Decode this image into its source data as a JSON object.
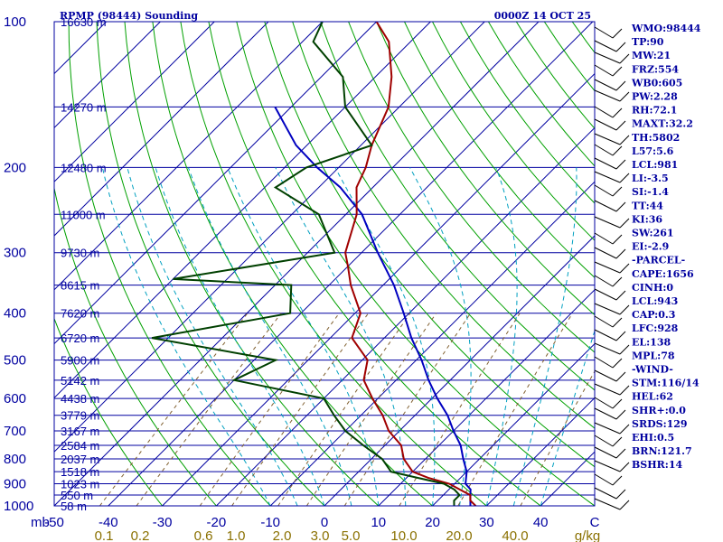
{
  "header": {
    "station": "RPMP (98444) Sounding",
    "time": "0000Z 14 OCT 25"
  },
  "chart_data": {
    "type": "line",
    "title": "RPMP (98444) Sounding",
    "subtitle": "0000Z 14 OCT 25",
    "pressure_levels": [
      100,
      200,
      300,
      400,
      500,
      600,
      700,
      800,
      900,
      1000
    ],
    "height_labels": [
      {
        "p": 100,
        "text": "16630 m"
      },
      {
        "p": 150,
        "text": "14270 m"
      },
      {
        "p": 200,
        "text": "12480 m"
      },
      {
        "p": 250,
        "text": "11000 m"
      },
      {
        "p": 300,
        "text": "9730 m"
      },
      {
        "p": 350,
        "text": "8615 m"
      },
      {
        "p": 400,
        "text": "7620 m"
      },
      {
        "p": 450,
        "text": "6720 m"
      },
      {
        "p": 500,
        "text": "5900 m"
      },
      {
        "p": 550,
        "text": "5142 m"
      },
      {
        "p": 600,
        "text": "4438 m"
      },
      {
        "p": 650,
        "text": "3779 m"
      },
      {
        "p": 700,
        "text": "3167 m"
      },
      {
        "p": 750,
        "text": "2584 m"
      },
      {
        "p": 800,
        "text": "2037 m"
      },
      {
        "p": 850,
        "text": "1518 m"
      },
      {
        "p": 900,
        "text": "1023 m"
      },
      {
        "p": 950,
        "text": "550 m"
      },
      {
        "p": 1000,
        "text": "58 m"
      }
    ],
    "pressure_unit": "mb",
    "temp_ticks": [
      "-50",
      "-40",
      "-30",
      "-20",
      "-10",
      "0",
      "10",
      "20",
      "30",
      "40",
      "C"
    ],
    "mixing_ratio_labels": [
      "0.1",
      "0.2",
      "0.6",
      "1.0",
      "2.0",
      "3.0",
      "5.0",
      "10.0",
      "20.0",
      "40.0",
      "g/kg"
    ],
    "xlim": [
      -50,
      50
    ],
    "ylim": [
      1000,
      100
    ],
    "y_scale": "log",
    "skew": true,
    "series": [
      {
        "values_x_temp_C": [
          28,
          26,
          25,
          22,
          19,
          14,
          10,
          6,
          3,
          -2,
          -6,
          -11,
          -16,
          -19,
          -26,
          -29,
          -36,
          -40,
          -43,
          -48,
          -53,
          -55,
          -58,
          -62,
          -67,
          -74,
          -80
        ],
        "pressure_mb": [
          1000,
          975,
          950,
          925,
          900,
          875,
          850,
          800,
          750,
          700,
          650,
          600,
          550,
          500,
          450,
          400,
          350,
          320,
          300,
          250,
          220,
          200,
          180,
          150,
          130,
          110,
          100
        ]
      },
      {
        "values_x_dewpoint_C": [
          24,
          23,
          23,
          21,
          18,
          12,
          6,
          2,
          -4,
          -10,
          -15,
          -20,
          -40,
          -36,
          -63,
          -42,
          -47,
          -70,
          -45,
          -55,
          -68,
          -66,
          -58,
          -70,
          -76,
          -88,
          -90
        ],
        "pressure_mb": [
          1000,
          975,
          950,
          925,
          900,
          875,
          850,
          800,
          750,
          700,
          650,
          600,
          550,
          500,
          450,
          400,
          350,
          340,
          300,
          250,
          220,
          200,
          180,
          150,
          130,
          110,
          100
        ]
      },
      {
        "values_x_parcel_C": [
          27,
          25,
          24,
          22,
          20,
          17,
          14,
          10,
          6,
          1,
          -4,
          -9,
          -15,
          -21,
          -28,
          -37,
          -47,
          -56,
          -64,
          -72,
          -83
        ],
        "pressure_mb": [
          1000,
          950,
          925,
          900,
          850,
          800,
          750,
          700,
          650,
          600,
          550,
          500,
          450,
          400,
          350,
          300,
          250,
          220,
          200,
          180,
          150
        ]
      }
    ],
    "grid": true
  },
  "indices": [
    "WMO:98444",
    "TP:90",
    "MW:21",
    "FRZ:554",
    "WB0:605",
    "PW:2.28",
    "RH:72.1",
    "MAXT:32.2",
    "TH:5802",
    "L57:5.6",
    "LCL:981",
    "LI:-3.5",
    "SI:-1.4",
    "TT:44",
    "KI:36",
    "SW:261",
    "EI:-2.9",
    "-PARCEL-",
    "CAPE:1656",
    "CINH:0",
    "LCL:943",
    "CAP:0.3",
    "LFC:928",
    "EL:138",
    "MPL:78",
    "-WIND-",
    "STM:116/14",
    "HEL:62",
    "SHR+:0.0",
    "SRDS:129",
    "EHI:0.5",
    "BRN:121.7",
    "BSHR:14"
  ],
  "colors": {
    "isobar": "#0000a0",
    "isotherm": "#0000a0",
    "dry_adiabat": "#00a000",
    "moist_adiabat": "#00a0c0",
    "mixing_ratio": "#806030",
    "temperature": "#a00000",
    "dewpoint": "#004000",
    "parcel": "#0000c0"
  }
}
